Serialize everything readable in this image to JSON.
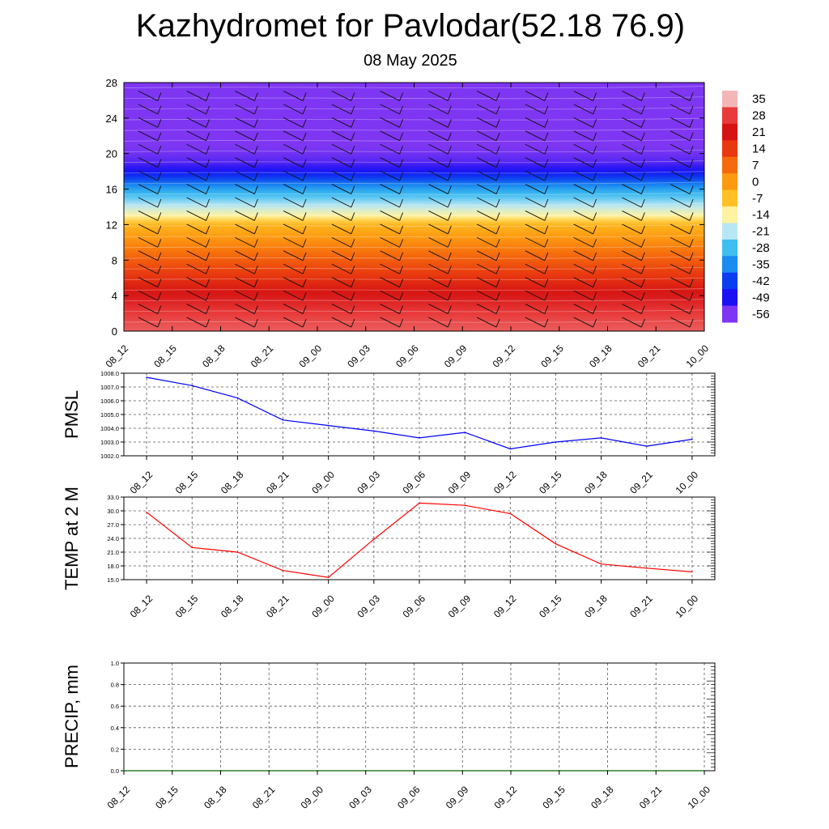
{
  "header": {
    "title": "Kazhydromet for Pavlodar(52.18 76.9)",
    "subtitle": "08 May 2025"
  },
  "chart_data": [
    {
      "type": "heatmap",
      "ylim": [
        0,
        28
      ],
      "y_ticks": [
        "0",
        "4",
        "8",
        "12",
        "16",
        "20",
        "24",
        "28"
      ],
      "x_ticks": [
        "08_12",
        "08_15",
        "08_18",
        "08_21",
        "09_00",
        "09_03",
        "09_06",
        "09_09",
        "09_12",
        "09_15",
        "09_18",
        "09_21",
        "10_00"
      ],
      "colorbar": {
        "labels": [
          "35",
          "28",
          "21",
          "14",
          "7",
          "0",
          "-7",
          "-14",
          "-21",
          "-28",
          "-35",
          "-42",
          "-49",
          "-56"
        ],
        "colors": [
          "#f2b6b6",
          "#e83a3a",
          "#d51313",
          "#e83810",
          "#f56a0c",
          "#fd9a11",
          "#ffc125",
          "#fff2a0",
          "#b8e6f4",
          "#3fbef0",
          "#1a8cf0",
          "#0a3cf0",
          "#1a10f4",
          "#7e36f2"
        ]
      },
      "temperature_profile": [
        {
          "y": 0,
          "value": 30
        },
        {
          "y": 2,
          "value": 28
        },
        {
          "y": 4,
          "value": 22
        },
        {
          "y": 6,
          "value": 15
        },
        {
          "y": 8,
          "value": 9
        },
        {
          "y": 10,
          "value": 2
        },
        {
          "y": 12,
          "value": -5
        },
        {
          "y": 13,
          "value": -14
        },
        {
          "y": 14,
          "value": -20
        },
        {
          "y": 15,
          "value": -26
        },
        {
          "y": 16,
          "value": -32
        },
        {
          "y": 17,
          "value": -40
        },
        {
          "y": 18,
          "value": -48
        },
        {
          "y": 19,
          "value": -53
        },
        {
          "y": 20,
          "value": -55
        },
        {
          "y": 22,
          "value": -58
        },
        {
          "y": 24,
          "value": -56
        },
        {
          "y": 26,
          "value": -56
        },
        {
          "y": 28,
          "value": -56
        }
      ]
    },
    {
      "type": "line",
      "ylabel": "PMSL",
      "x": [
        "08_12",
        "08_15",
        "08_18",
        "08_21",
        "09_00",
        "09_03",
        "09_06",
        "09_09",
        "09_12",
        "09_15",
        "09_18",
        "09_21",
        "10_00"
      ],
      "ylim": [
        1002.0,
        1008.0
      ],
      "y_ticks": [
        "1002.0",
        "1003.0",
        "1004.0",
        "1005.0",
        "1006.0",
        "1007.0",
        "1008.0"
      ],
      "color": "#0000ff",
      "values": [
        1007.7,
        1007.1,
        1006.2,
        1004.6,
        1004.2,
        1003.8,
        1003.3,
        1003.7,
        1002.5,
        1003.0,
        1003.3,
        1002.7,
        1003.2
      ]
    },
    {
      "type": "line",
      "ylabel": "TEMP at 2 M",
      "x": [
        "08_12",
        "08_15",
        "08_18",
        "08_21",
        "09_00",
        "09_03",
        "09_06",
        "09_09",
        "09_12",
        "09_15",
        "09_18",
        "09_21",
        "10_00"
      ],
      "ylim": [
        15.0,
        33.0
      ],
      "y_ticks": [
        "15.0",
        "18.0",
        "21.0",
        "24.0",
        "27.0",
        "30.0",
        "33.0"
      ],
      "color": "#ff0000",
      "values": [
        29.7,
        22.0,
        21.0,
        17.0,
        15.5,
        23.8,
        31.7,
        31.2,
        29.4,
        22.8,
        18.4,
        17.5,
        16.7
      ]
    },
    {
      "type": "line",
      "ylabel": "PRECIP, mm",
      "x": [
        "08_12",
        "08_15",
        "08_18",
        "08_21",
        "09_00",
        "09_03",
        "09_06",
        "09_09",
        "09_12",
        "09_15",
        "09_18",
        "09_21",
        "10_00"
      ],
      "ylim": [
        0.0,
        1.0
      ],
      "y_ticks": [
        "0.0",
        "0.2",
        "0.4",
        "0.6",
        "0.8",
        "1.0"
      ],
      "color": "#006400",
      "values": [
        0,
        0,
        0,
        0,
        0,
        0,
        0,
        0,
        0,
        0,
        0,
        0,
        0
      ]
    }
  ]
}
